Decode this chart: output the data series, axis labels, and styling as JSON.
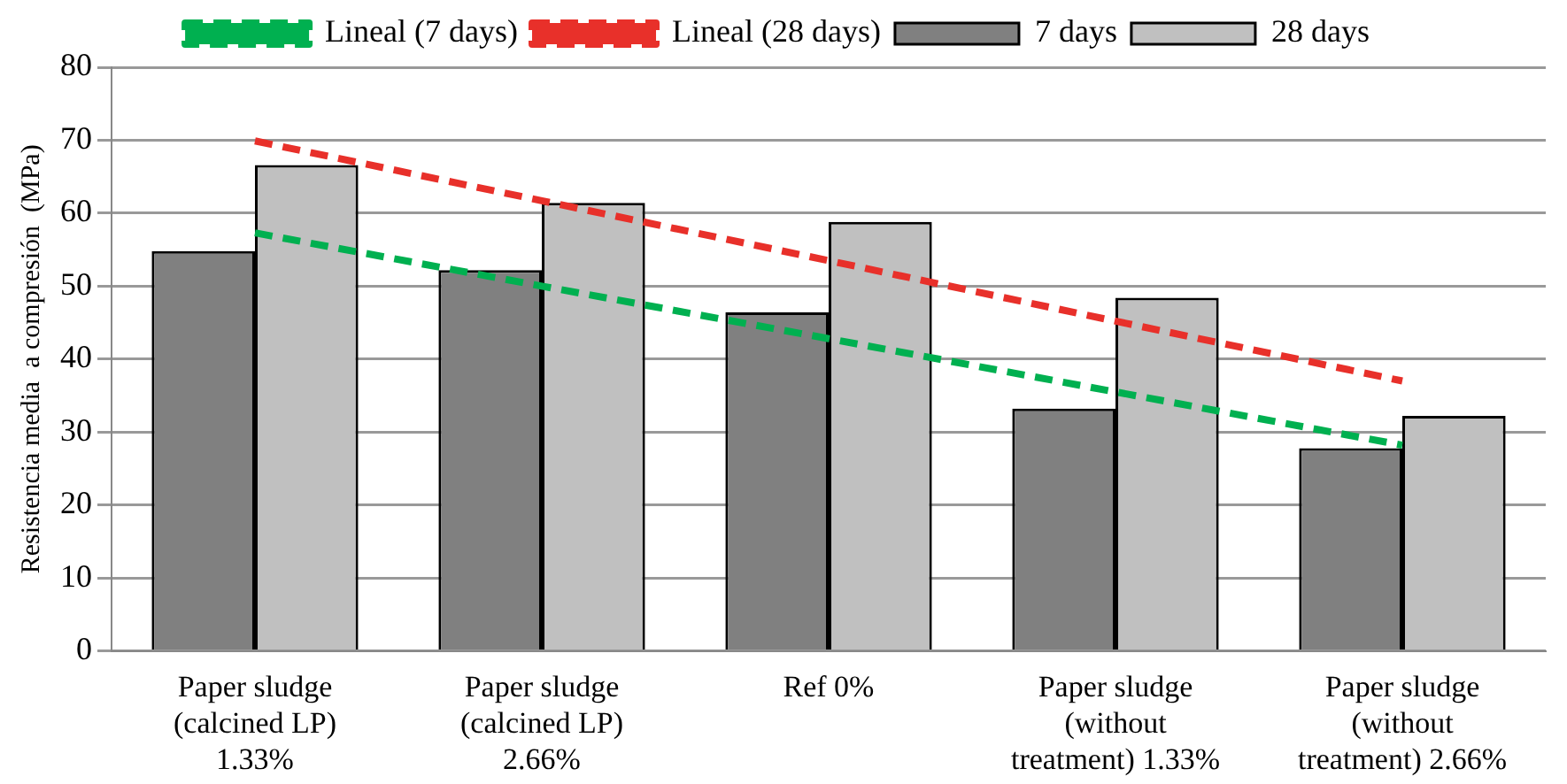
{
  "chart_data": {
    "type": "bar",
    "ylabel": "Resistencia media  a compresión  (MPa)",
    "categories": [
      "Paper sludge (calcined LP) 1.33%",
      "Paper sludge (calcined LP) 2.66%",
      "Ref 0%",
      "Paper sludge (without treatment) 1.33%",
      "Paper sludge (without treatment) 2.66%"
    ],
    "series": [
      {
        "name": "7 days",
        "color": "#808080",
        "values": [
          54.8,
          52.2,
          46.4,
          33.2,
          27.8
        ]
      },
      {
        "name": "28 days",
        "color": "#c0c0c0",
        "values": [
          66.6,
          61.4,
          58.8,
          48.4,
          32.2
        ]
      },
      {
        "name": "Lineal (7 days)",
        "type": "line",
        "line_style": "dashed",
        "color": "#00b050",
        "values": [
          57.3,
          50.0,
          42.8,
          35.5,
          28.2
        ]
      },
      {
        "name": "Lineal (28 days)",
        "type": "line",
        "line_style": "dashed",
        "color": "#e8302a",
        "values": [
          69.9,
          61.7,
          53.5,
          45.2,
          37.0
        ]
      }
    ],
    "ylim": [
      0,
      80
    ],
    "yticks": [
      0,
      10,
      20,
      30,
      40,
      50,
      60,
      70,
      80
    ],
    "grid": "y",
    "legend": "top",
    "marker": "none"
  }
}
